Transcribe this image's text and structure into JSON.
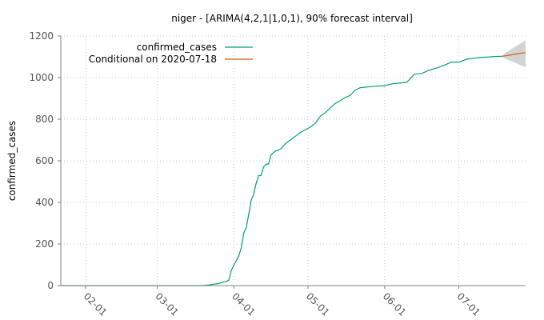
{
  "chart_data": {
    "type": "line",
    "title": "niger -  [ARIMA(4,2,1|1,0,1), 90% forecast interval]",
    "xlabel": "",
    "ylabel": "confirmed_cases",
    "ylim": [
      0,
      1200
    ],
    "xlim": [
      "2020-01-22",
      "2020-07-28"
    ],
    "grid": true,
    "legend_position": "top-left",
    "y_ticks": [
      "0",
      "200",
      "400",
      "600",
      "800",
      "1000",
      "1200"
    ],
    "x_ticks": [
      {
        "date": "2020-02-01",
        "label": "02-01"
      },
      {
        "date": "2020-03-01",
        "label": "03-01"
      },
      {
        "date": "2020-04-01",
        "label": "04-01"
      },
      {
        "date": "2020-05-01",
        "label": "05-01"
      },
      {
        "date": "2020-06-01",
        "label": "06-01"
      },
      {
        "date": "2020-07-01",
        "label": "07-01"
      }
    ],
    "series": [
      {
        "name": "confirmed_cases",
        "color": "#009e73",
        "x": [
          "2020-01-22",
          "2020-03-18",
          "2020-03-20",
          "2020-03-22",
          "2020-03-24",
          "2020-03-26",
          "2020-03-28",
          "2020-03-29",
          "2020-03-30",
          "2020-03-31",
          "2020-04-01",
          "2020-04-02",
          "2020-04-03",
          "2020-04-04",
          "2020-04-05",
          "2020-04-06",
          "2020-04-07",
          "2020-04-08",
          "2020-04-09",
          "2020-04-10",
          "2020-04-11",
          "2020-04-12",
          "2020-04-13",
          "2020-04-14",
          "2020-04-15",
          "2020-04-16",
          "2020-04-17",
          "2020-04-18",
          "2020-04-20",
          "2020-04-22",
          "2020-04-24",
          "2020-04-26",
          "2020-04-28",
          "2020-04-30",
          "2020-05-02",
          "2020-05-04",
          "2020-05-06",
          "2020-05-08",
          "2020-05-10",
          "2020-05-12",
          "2020-05-14",
          "2020-05-16",
          "2020-05-18",
          "2020-05-20",
          "2020-05-22",
          "2020-05-25",
          "2020-05-28",
          "2020-06-01",
          "2020-06-04",
          "2020-06-07",
          "2020-06-10",
          "2020-06-13",
          "2020-06-16",
          "2020-06-19",
          "2020-06-22",
          "2020-06-25",
          "2020-06-28",
          "2020-07-01",
          "2020-07-04",
          "2020-07-07",
          "2020-07-10",
          "2020-07-13",
          "2020-07-16",
          "2020-07-18"
        ],
        "y": [
          0,
          0,
          1,
          3,
          7,
          10,
          18,
          20,
          27,
          74,
          98,
          120,
          144,
          182,
          253,
          278,
          342,
          410,
          438,
          491,
          529,
          529,
          570,
          584,
          584,
          627,
          639,
          648,
          657,
          684,
          701,
          719,
          737,
          750,
          763,
          781,
          815,
          832,
          854,
          876,
          889,
          904,
          914,
          939,
          951,
          955,
          958,
          961,
          970,
          974,
          978,
          1016,
          1020,
          1036,
          1046,
          1059,
          1075,
          1074,
          1088,
          1093,
          1097,
          1099,
          1102,
          1102
        ]
      },
      {
        "name": "Conditional on 2020-07-18",
        "color": "#d55e00",
        "x": [
          "2020-07-18",
          "2020-07-20",
          "2020-07-22",
          "2020-07-24",
          "2020-07-26",
          "2020-07-28"
        ],
        "y": [
          1102,
          1105,
          1109,
          1113,
          1117,
          1120
        ],
        "interval_upper": [
          1102,
          1120,
          1135,
          1150,
          1165,
          1180
        ],
        "interval_lower": [
          1102,
          1090,
          1080,
          1070,
          1060,
          1050
        ]
      }
    ]
  }
}
